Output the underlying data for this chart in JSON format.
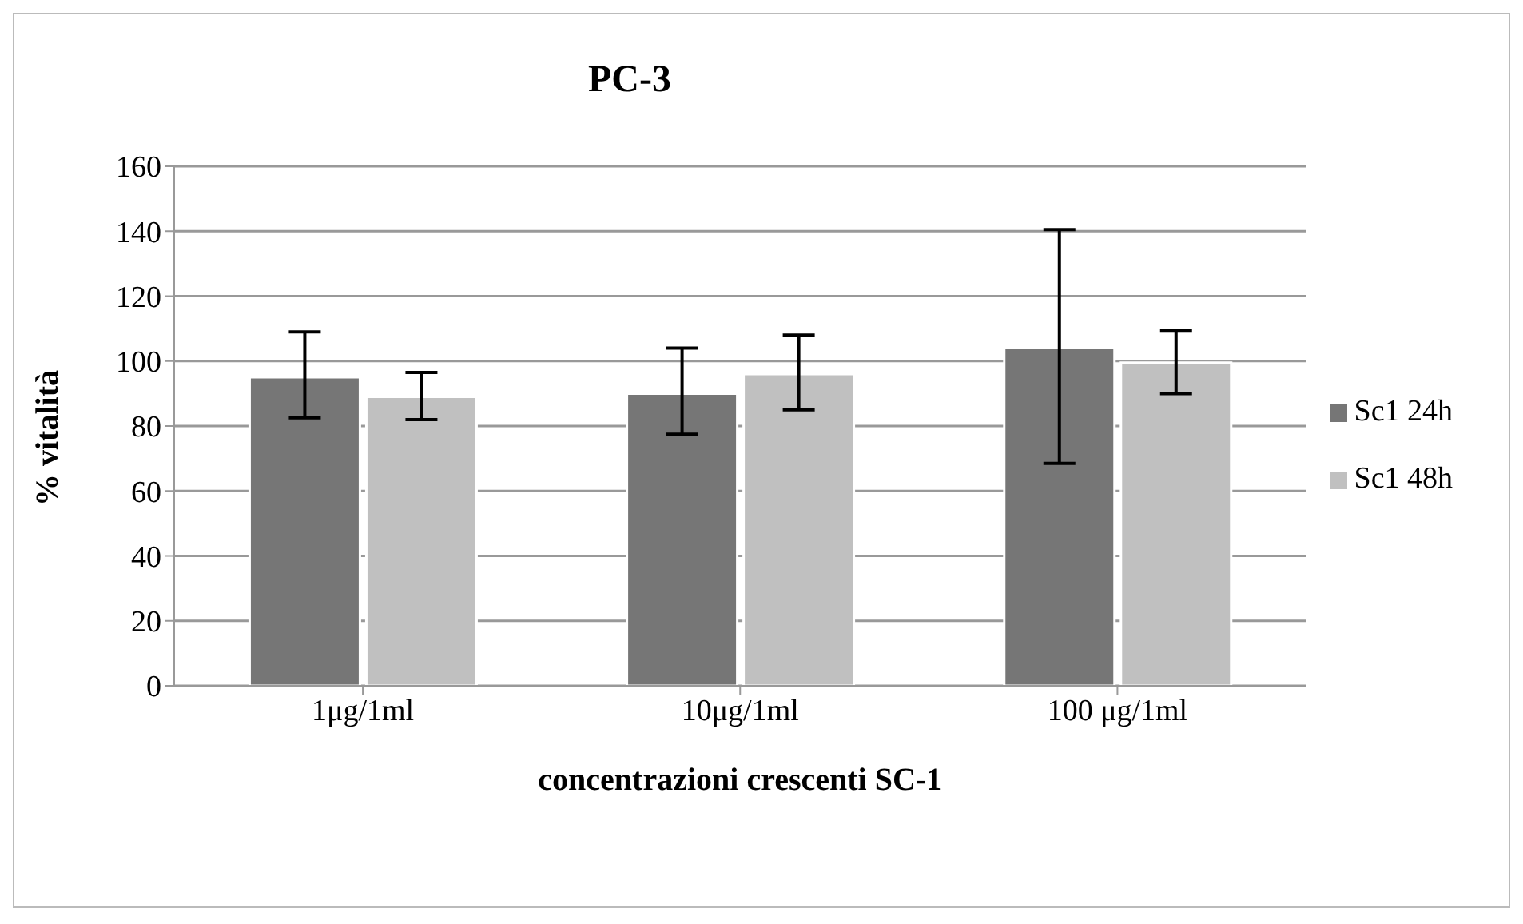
{
  "chart_data": {
    "type": "bar",
    "title": "PC-3",
    "xlabel": "concentrazioni crescenti SC-1",
    "ylabel": "% vitalità",
    "categories": [
      "1μg/1ml",
      "10μg/1ml",
      "100 μg/1ml"
    ],
    "series": [
      {
        "name": "Sc1 24h",
        "color": "#767676",
        "values": [
          95,
          90,
          104
        ],
        "errors": [
          [
            82.5,
            109
          ],
          [
            77.5,
            104
          ],
          [
            68.5,
            140.5
          ]
        ]
      },
      {
        "name": "Sc1 48h",
        "color": "#c0c0c0",
        "values": [
          89,
          96,
          99.5
        ],
        "errors": [
          [
            82,
            96.5
          ],
          [
            85,
            108
          ],
          [
            90,
            109.5
          ]
        ]
      }
    ],
    "ylim": [
      0,
      160
    ],
    "yticks": [
      0,
      20,
      40,
      60,
      80,
      100,
      120,
      140,
      160
    ],
    "grid": "y",
    "legend": "right"
  }
}
